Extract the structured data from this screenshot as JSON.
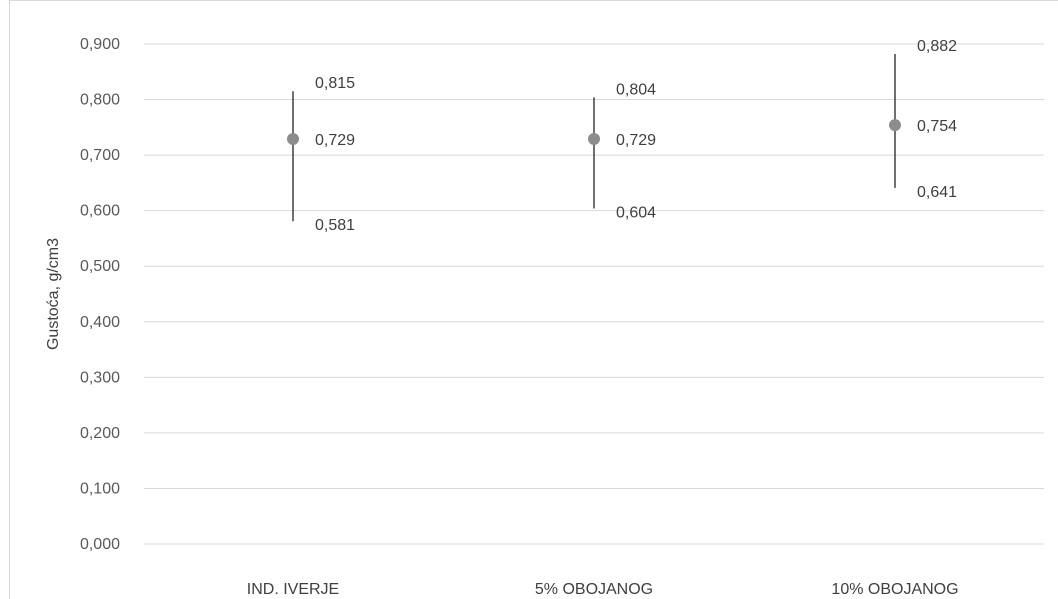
{
  "chart_data": {
    "type": "scatter",
    "ylabel": "Gustoća, g/cm3",
    "ylim": [
      0,
      0.9
    ],
    "yticks": [
      "0,000",
      "0,100",
      "0,200",
      "0,300",
      "0,400",
      "0,500",
      "0,600",
      "0,700",
      "0,800",
      "0,900"
    ],
    "ytick_values": [
      0,
      0.1,
      0.2,
      0.3,
      0.4,
      0.5,
      0.6,
      0.7,
      0.8,
      0.9
    ],
    "categories": [
      "IND. IVERJE",
      "5% OBOJANOG",
      "10% OBOJANOG"
    ],
    "series": [
      {
        "mean": [
          0.729,
          0.729,
          0.754
        ],
        "max": [
          0.815,
          0.804,
          0.882
        ],
        "min": [
          0.581,
          0.604,
          0.641
        ],
        "mean_labels": [
          "0,729",
          "0,729",
          "0,754"
        ],
        "max_labels": [
          "0,815",
          "0,804",
          "0,882"
        ],
        "min_labels": [
          "0,581",
          "0,604",
          "0,641"
        ]
      }
    ],
    "grid": true,
    "legend": "none",
    "colors": {
      "marker": "#8c8c8c",
      "range": "#404040",
      "grid": "#d9d9d9"
    }
  }
}
